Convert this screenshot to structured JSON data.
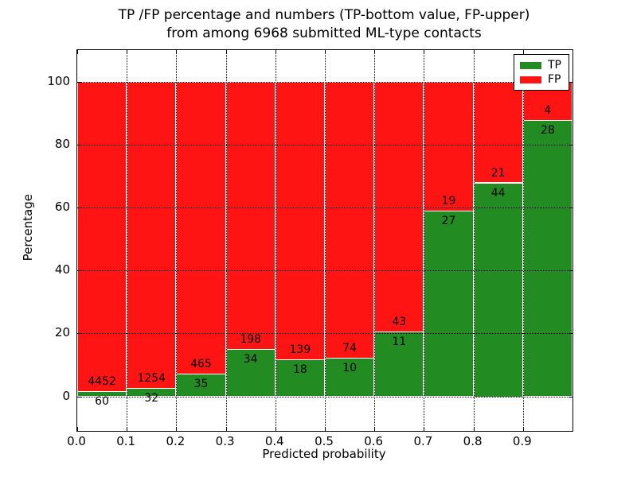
{
  "title": {
    "line1": "TP /FP percentage and numbers (TP-bottom value, FP-upper)",
    "line2": "from among 6968 submitted ML-type contacts"
  },
  "axes": {
    "xlabel": "Predicted probability",
    "ylabel": "Percentage",
    "xticks": [
      "0.0",
      "0.1",
      "0.2",
      "0.3",
      "0.4",
      "0.5",
      "0.6",
      "0.7",
      "0.8",
      "0.9"
    ],
    "yticks": [
      "0",
      "20",
      "40",
      "60",
      "80",
      "100"
    ]
  },
  "legend": {
    "items": [
      {
        "label": "TP",
        "color": "#228B22"
      },
      {
        "label": "FP",
        "color": "#FF1414"
      }
    ]
  },
  "chart_data": {
    "type": "bar",
    "stacked": true,
    "normalized": "each bin scaled to 100%, labels show raw counts",
    "title": "TP /FP percentage and numbers (TP-bottom value, FP-upper) from among 6968 submitted ML-type contacts",
    "xlabel": "Predicted probability",
    "ylabel": "Percentage",
    "bin_start": [
      0.0,
      0.1,
      0.2,
      0.3,
      0.4,
      0.5,
      0.6,
      0.7,
      0.8,
      0.9
    ],
    "bin_width": 0.1,
    "series": [
      {
        "name": "TP",
        "color": "#228B22",
        "counts": [
          60,
          32,
          35,
          34,
          18,
          10,
          11,
          27,
          44,
          28
        ]
      },
      {
        "name": "FP",
        "color": "#FF1414",
        "counts": [
          4452,
          1254,
          465,
          198,
          139,
          74,
          43,
          19,
          21,
          4
        ]
      }
    ],
    "total_contacts": 6968,
    "xlim": [
      0,
      1
    ],
    "ylim": [
      -11,
      110
    ],
    "grid": true,
    "grid_style": "dotted",
    "legend_position": "upper right"
  }
}
